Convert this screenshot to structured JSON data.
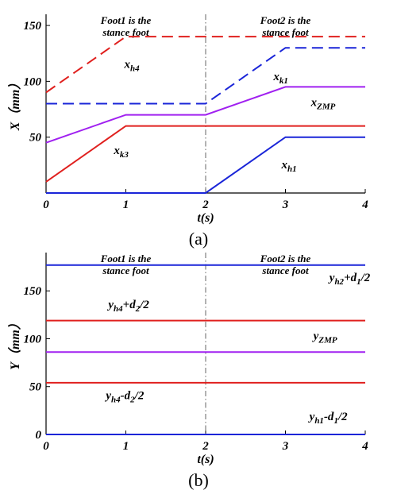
{
  "chart_data": [
    {
      "type": "line",
      "caption": "(a)",
      "xlabel": "t(s)",
      "ylabel": "X（mm）",
      "xlim": [
        0,
        4
      ],
      "ylim": [
        0,
        160
      ],
      "xticks": [
        "0",
        "1",
        "2",
        "3",
        "4"
      ],
      "yticks": [
        {
          "v": 50,
          "t": "50"
        },
        {
          "v": 100,
          "t": "100"
        },
        {
          "v": 150,
          "t": "150"
        }
      ],
      "grid": false,
      "vline": 2,
      "annotations": [
        {
          "line1": "Foot1 is the",
          "line2": "stance foot",
          "x": 1
        },
        {
          "line1": "Foot2 is the",
          "line2": "stance foot",
          "x": 3
        }
      ],
      "series": [
        {
          "name": "x_h4",
          "base": "x",
          "subscript": "h4",
          "color": "#e0201e",
          "dash": true,
          "points": [
            [
              0,
              90
            ],
            [
              1,
              140
            ],
            [
              4,
              140
            ]
          ],
          "label_x": 0.98,
          "label_y": 112
        },
        {
          "name": "x_k1",
          "base": "x",
          "subscript": "k1",
          "color": "#1a25d8",
          "dash": true,
          "points": [
            [
              0,
              80
            ],
            [
              2,
              80
            ],
            [
              3,
              130
            ],
            [
              4,
              130
            ]
          ],
          "label_x": 2.85,
          "label_y": 101
        },
        {
          "name": "x_ZMP",
          "base": "x",
          "subscript": "ZMP",
          "color": "#a020f0",
          "dash": false,
          "points": [
            [
              0,
              45
            ],
            [
              1,
              70
            ],
            [
              2,
              70
            ],
            [
              3,
              95
            ],
            [
              4,
              95
            ]
          ],
          "label_x": 3.32,
          "label_y": 78
        },
        {
          "name": "x_k3",
          "base": "x",
          "subscript": "k3",
          "color": "#e0201e",
          "dash": false,
          "points": [
            [
              0,
              10
            ],
            [
              1,
              60
            ],
            [
              4,
              60
            ]
          ],
          "label_x": 0.85,
          "label_y": 35
        },
        {
          "name": "x_h1",
          "base": "x",
          "subscript": "h1",
          "color": "#1a25d8",
          "dash": false,
          "points": [
            [
              0,
              0
            ],
            [
              2,
              0
            ],
            [
              3,
              50
            ],
            [
              4,
              50
            ]
          ],
          "label_x": 2.95,
          "label_y": 22
        }
      ]
    },
    {
      "type": "line",
      "caption": "(b)",
      "xlabel": "t(s)",
      "ylabel": "Y（mm）",
      "xlim": [
        0,
        4
      ],
      "ylim": [
        0,
        190
      ],
      "xticks": [
        "0",
        "1",
        "2",
        "3",
        "4"
      ],
      "yticks": [
        {
          "v": 0,
          "t": "0"
        },
        {
          "v": 50,
          "t": "50"
        },
        {
          "v": 100,
          "t": "100"
        },
        {
          "v": 150,
          "t": "150"
        }
      ],
      "grid": false,
      "vline": 2,
      "annotations": [
        {
          "line1": "Foot1 is the",
          "line2": "stance foot",
          "x": 1
        },
        {
          "line1": "Foot2 is the",
          "line2": "stance foot",
          "x": 3
        }
      ],
      "series": [
        {
          "name": "y_h2+d_1/2",
          "base": "y",
          "subscript": "h2",
          "mid": "+d",
          "subscript2": "1",
          "tail": "/2",
          "color": "#1a25d8",
          "dash": false,
          "points": [
            [
              0,
              177
            ],
            [
              4,
              177
            ]
          ],
          "label_x": 3.55,
          "label_y": 160
        },
        {
          "name": "y_h4+d_2/2",
          "base": "y",
          "subscript": "h4",
          "mid": "+d",
          "subscript2": "2",
          "tail": "/2",
          "color": "#e0201e",
          "dash": false,
          "points": [
            [
              0,
              119
            ],
            [
              4,
              119
            ]
          ],
          "label_x": 0.78,
          "label_y": 132
        },
        {
          "name": "y_ZMP",
          "base": "y",
          "subscript": "ZMP",
          "mid": "",
          "subscript2": "",
          "tail": "",
          "color": "#a020f0",
          "dash": false,
          "points": [
            [
              0,
              86
            ],
            [
              4,
              86
            ]
          ],
          "label_x": 3.35,
          "label_y": 99
        },
        {
          "name": "y_h4-d_2/2",
          "base": "y",
          "subscript": "h4",
          "mid": "-d",
          "subscript2": "2",
          "tail": "/2",
          "color": "#e0201e",
          "dash": false,
          "points": [
            [
              0,
              54
            ],
            [
              4,
              54
            ]
          ],
          "label_x": 0.75,
          "label_y": 37
        },
        {
          "name": "y_h1-d_1/2",
          "base": "y",
          "subscript": "h1",
          "mid": "-d",
          "subscript2": "1",
          "tail": "/2",
          "color": "#1a25d8",
          "dash": false,
          "points": [
            [
              0,
              0
            ],
            [
              4,
              0
            ]
          ],
          "label_x": 3.3,
          "label_y": 15
        }
      ]
    }
  ]
}
